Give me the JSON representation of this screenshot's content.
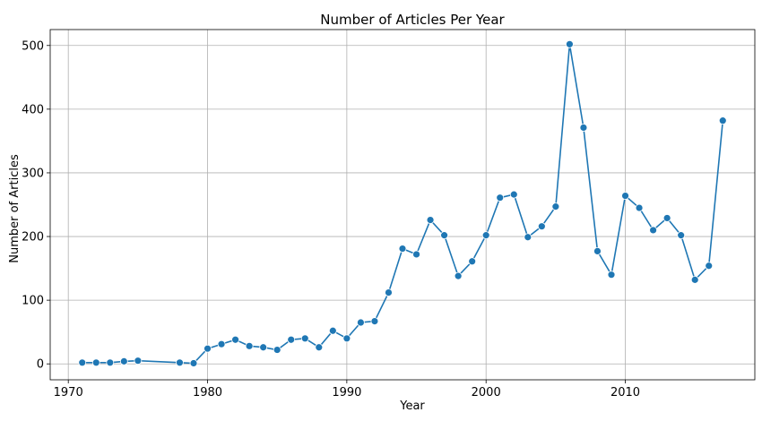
{
  "chart_data": {
    "type": "line",
    "title": "Number of Articles Per Year",
    "xlabel": "Year",
    "ylabel": "Number of Articles",
    "xlim": [
      1968.7,
      2019.3
    ],
    "ylim": [
      -25,
      525
    ],
    "xticks": [
      1970,
      1980,
      1990,
      2000,
      2010
    ],
    "yticks": [
      0,
      100,
      200,
      300,
      400,
      500
    ],
    "grid": true,
    "series_color": "#1f77b4",
    "x": [
      1971,
      1972,
      1973,
      1974,
      1975,
      1978,
      1979,
      1980,
      1981,
      1982,
      1983,
      1984,
      1985,
      1986,
      1987,
      1988,
      1989,
      1990,
      1991,
      1992,
      1993,
      1994,
      1995,
      1996,
      1997,
      1998,
      1999,
      2000,
      2001,
      2002,
      2003,
      2004,
      2005,
      2006,
      2007,
      2008,
      2009,
      2010,
      2011,
      2012,
      2013,
      2014,
      2015,
      2016,
      2017
    ],
    "y": [
      2,
      2,
      2,
      4,
      5,
      2,
      1,
      24,
      31,
      38,
      28,
      26,
      22,
      38,
      40,
      26,
      52,
      40,
      65,
      67,
      112,
      181,
      172,
      226,
      202,
      138,
      161,
      202,
      261,
      266,
      199,
      216,
      247,
      502,
      371,
      177,
      140,
      264,
      245,
      210,
      229,
      202,
      132,
      154,
      382
    ]
  }
}
